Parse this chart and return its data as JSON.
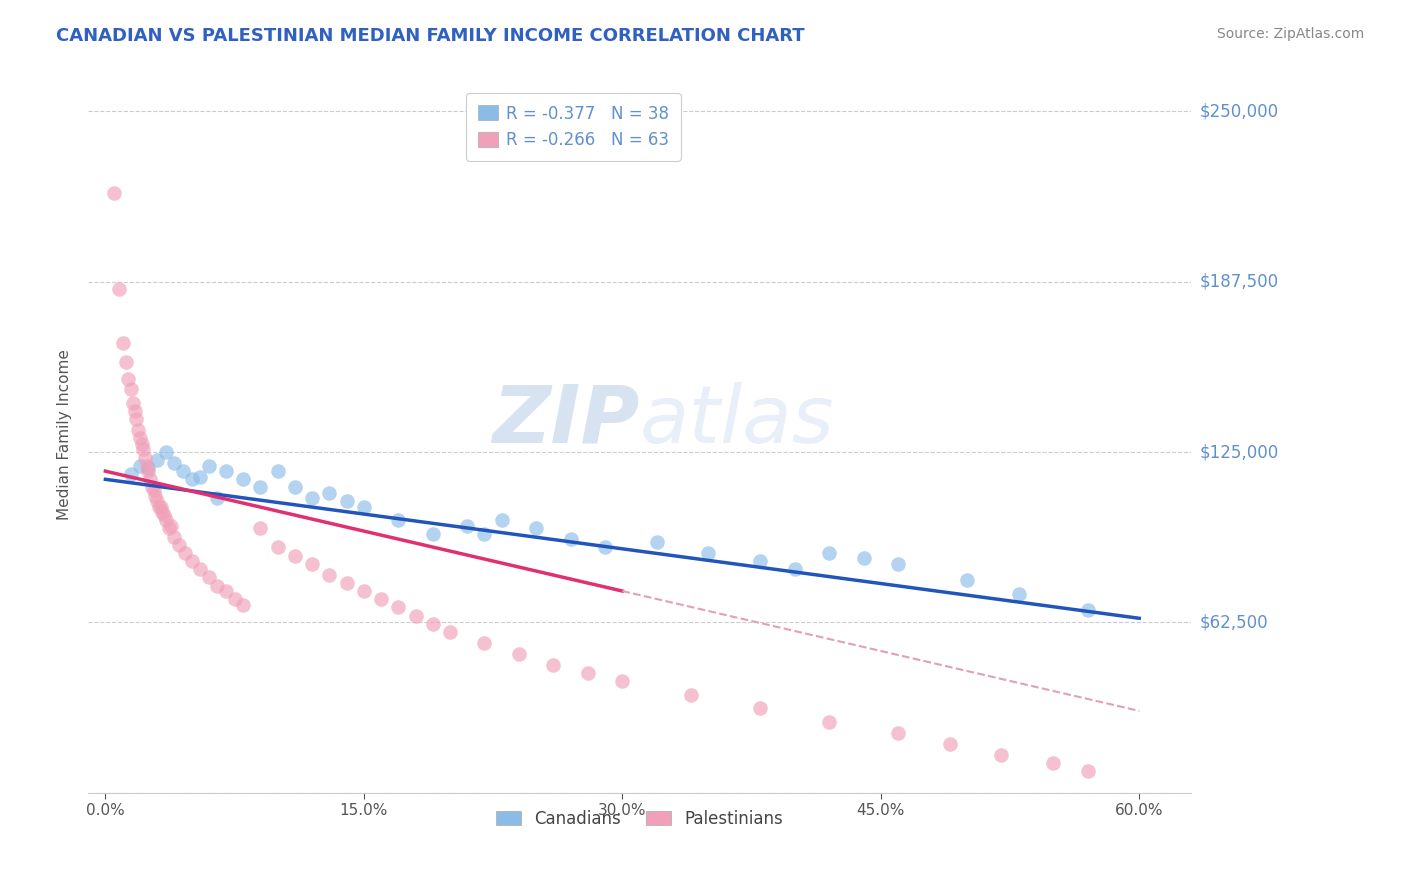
{
  "title": "CANADIAN VS PALESTINIAN MEDIAN FAMILY INCOME CORRELATION CHART",
  "source": "Source: ZipAtlas.com",
  "ylabel": "Median Family Income",
  "xlabel_ticks": [
    "0.0%",
    "15.0%",
    "30.0%",
    "45.0%",
    "60.0%"
  ],
  "xlabel_vals": [
    0.0,
    15.0,
    30.0,
    45.0,
    60.0
  ],
  "ytick_vals": [
    0,
    62500,
    125000,
    187500,
    250000
  ],
  "ytick_labels": [
    "",
    "$62,500",
    "$125,000",
    "$187,500",
    "$250,000"
  ],
  "ylim": [
    0,
    262500
  ],
  "xlim": [
    -1,
    63
  ],
  "legend_entries": [
    {
      "label": "R = -0.377   N = 38",
      "color": "#a8c8f0"
    },
    {
      "label": "R = -0.266   N = 63",
      "color": "#f0a8c0"
    }
  ],
  "legend_bottom": [
    "Canadians",
    "Palestinians"
  ],
  "canadian_color": "#8bbce8",
  "palestinian_color": "#f0a0b8",
  "canadian_line_color": "#2255bb",
  "palestinian_line_color": "#e03070",
  "dashed_line_color": "#e0a0b8",
  "watermark_zip": "ZIP",
  "watermark_atlas": "atlas",
  "title_color": "#3060c0",
  "title_fontsize": 13,
  "source_color": "#888888",
  "ytick_color": "#6090d0",
  "canadians_x": [
    1.5,
    2.0,
    2.5,
    3.0,
    3.5,
    4.0,
    4.5,
    5.0,
    5.5,
    6.0,
    7.0,
    8.0,
    9.0,
    10.0,
    11.0,
    12.0,
    13.0,
    14.0,
    15.0,
    17.0,
    19.0,
    21.0,
    23.0,
    25.0,
    27.0,
    29.0,
    32.0,
    35.0,
    38.0,
    42.0,
    44.0,
    46.0,
    50.0,
    53.0,
    57.0,
    40.0,
    22.0,
    6.5
  ],
  "canadians_y": [
    117000,
    120000,
    119000,
    122000,
    125000,
    121000,
    118000,
    115000,
    116000,
    120000,
    118000,
    115000,
    112000,
    118000,
    112000,
    108000,
    110000,
    107000,
    105000,
    100000,
    95000,
    98000,
    100000,
    97000,
    93000,
    90000,
    92000,
    88000,
    85000,
    88000,
    86000,
    84000,
    78000,
    73000,
    67000,
    82000,
    95000,
    108000
  ],
  "palestinians_x": [
    0.5,
    0.8,
    1.0,
    1.2,
    1.3,
    1.5,
    1.6,
    1.7,
    1.8,
    1.9,
    2.0,
    2.1,
    2.2,
    2.3,
    2.4,
    2.5,
    2.6,
    2.7,
    2.8,
    2.9,
    3.0,
    3.1,
    3.2,
    3.3,
    3.4,
    3.5,
    3.7,
    4.0,
    4.3,
    4.6,
    5.0,
    5.5,
    6.0,
    6.5,
    7.0,
    7.5,
    8.0,
    9.0,
    10.0,
    11.0,
    12.0,
    13.0,
    14.0,
    15.0,
    16.0,
    17.0,
    18.0,
    19.0,
    20.0,
    22.0,
    24.0,
    26.0,
    28.0,
    30.0,
    34.0,
    38.0,
    42.0,
    46.0,
    49.0,
    52.0,
    55.0,
    57.0,
    3.8
  ],
  "palestinians_y": [
    220000,
    185000,
    165000,
    158000,
    152000,
    148000,
    143000,
    140000,
    137000,
    133000,
    130000,
    128000,
    126000,
    123000,
    120000,
    118000,
    115000,
    112000,
    111000,
    109000,
    107000,
    105000,
    105000,
    103000,
    102000,
    100000,
    97000,
    94000,
    91000,
    88000,
    85000,
    82000,
    79000,
    76000,
    74000,
    71000,
    69000,
    97000,
    90000,
    87000,
    84000,
    80000,
    77000,
    74000,
    71000,
    68000,
    65000,
    62000,
    59000,
    55000,
    51000,
    47000,
    44000,
    41000,
    36000,
    31000,
    26000,
    22000,
    18000,
    14000,
    11000,
    8000,
    98000
  ],
  "can_line_x0": 0,
  "can_line_y0": 115000,
  "can_line_x1": 60,
  "can_line_y1": 64000,
  "pal_line_x0": 0,
  "pal_line_y0": 118000,
  "pal_line_x1": 60,
  "pal_line_y1": 30000,
  "pal_solid_end": 30
}
